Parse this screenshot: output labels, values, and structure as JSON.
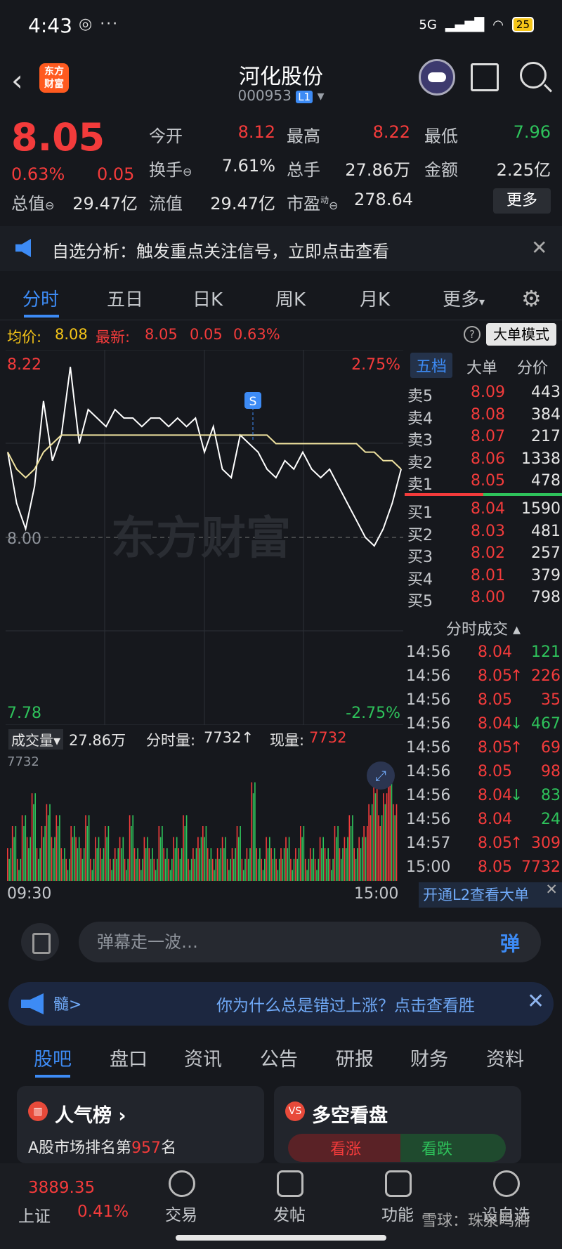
{
  "statusbar": {
    "time": "4:43",
    "network": "5G",
    "battery": "25"
  },
  "header": {
    "title": "河化股份",
    "code": "000953",
    "level": "L1",
    "logo_text": "东方财富"
  },
  "quote": {
    "price": "8.05",
    "change_pct": "0.63%",
    "change_abs": "0.05",
    "open_label": "今开",
    "open": "8.12",
    "high_label": "最高",
    "high": "8.22",
    "low_label": "最低",
    "low": "7.96",
    "turnover_label": "换手",
    "turnover": "7.61%",
    "volume_label": "总手",
    "volume": "27.86万",
    "amount_label": "金额",
    "amount": "2.25亿",
    "mktcap_label": "总值",
    "mktcap": "29.47亿",
    "float_label": "流值",
    "float": "29.47亿",
    "pe_label": "市盈",
    "pe_sup": "动",
    "pe": "278.64",
    "more_label": "更多"
  },
  "notice": {
    "text": "自选分析：触发重点关注信号，立即点击查看"
  },
  "tabs": [
    "分时",
    "五日",
    "日K",
    "周K",
    "月K",
    "更多"
  ],
  "avgbar": {
    "avg_label": "均价:",
    "avg": "8.08",
    "last_label": "最新:",
    "last": "8.05",
    "chg": "0.05",
    "pct": "0.63%",
    "mode_button": "大单模式"
  },
  "chart_data": {
    "type": "line",
    "series": [
      {
        "values": [
          8.1,
          8.04,
          8.01,
          8.06,
          8.16,
          8.09,
          8.12,
          8.2,
          8.11,
          8.15,
          8.14,
          8.13,
          8.15,
          8.14,
          8.14,
          8.13,
          8.14,
          8.14,
          8.13,
          8.14,
          8.13,
          8.14,
          8.1,
          8.13,
          8.08,
          8.07,
          8.12,
          8.11,
          8.1,
          8.08,
          8.07,
          8.09,
          8.08,
          8.1,
          8.08,
          8.07,
          8.08,
          8.06,
          8.04,
          8.02,
          8.0,
          7.99,
          8.01,
          8.04,
          8.08
        ]
      },
      {
        "values": [
          8.1,
          8.08,
          8.07,
          8.08,
          8.1,
          8.11,
          8.12,
          8.12,
          8.12,
          8.12,
          8.12,
          8.12,
          8.12,
          8.12,
          8.12,
          8.12,
          8.12,
          8.12,
          8.12,
          8.12,
          8.12,
          8.12,
          8.12,
          8.12,
          8.12,
          8.12,
          8.12,
          8.12,
          8.12,
          8.12,
          8.11,
          8.11,
          8.11,
          8.11,
          8.11,
          8.11,
          8.11,
          8.11,
          8.11,
          8.11,
          8.1,
          8.1,
          8.09,
          8.09,
          8.08
        ]
      }
    ],
    "ylim": [
      7.78,
      8.22
    ],
    "y_labels": {
      "top": "8.22",
      "mid": "8.00",
      "bottom": "7.78",
      "top_pct": "2.75%",
      "bottom_pct": "-2.75%"
    },
    "signal_marker": "S",
    "watermark": "东方财富",
    "x_labels": [
      "09:30",
      "15:00"
    ]
  },
  "volume": {
    "label": "成交量",
    "total": "27.86万",
    "tick_label": "分时量:",
    "tick": "7732↑",
    "now_label": "现量:",
    "now": "7732",
    "max": "7732",
    "bars": [
      3,
      5,
      2,
      6,
      4,
      8,
      3,
      5,
      7,
      4,
      6,
      3,
      2,
      5,
      4,
      3,
      6,
      2,
      4,
      3,
      5,
      2,
      3,
      4,
      2,
      6,
      3,
      2,
      4,
      3,
      2,
      5,
      3,
      2,
      4,
      3,
      6,
      2,
      3,
      4,
      5,
      3,
      2,
      3,
      4,
      2,
      3,
      5,
      2,
      3,
      9,
      3,
      2,
      4,
      3,
      2,
      3,
      4,
      2,
      3,
      5,
      2,
      3,
      2,
      4,
      3,
      2,
      5,
      3,
      4,
      6,
      3,
      4,
      5,
      7,
      9,
      6,
      8,
      10,
      7
    ]
  },
  "book": {
    "tabs": [
      "五档",
      "大单",
      "分价"
    ],
    "asks": [
      {
        "label": "卖5",
        "price": "8.09",
        "vol": "443"
      },
      {
        "label": "卖4",
        "price": "8.08",
        "vol": "384"
      },
      {
        "label": "卖3",
        "price": "8.07",
        "vol": "217"
      },
      {
        "label": "卖2",
        "price": "8.06",
        "vol": "1338"
      },
      {
        "label": "卖1",
        "price": "8.05",
        "vol": "478"
      }
    ],
    "bids": [
      {
        "label": "买1",
        "price": "8.04",
        "vol": "1590"
      },
      {
        "label": "买2",
        "price": "8.03",
        "vol": "481"
      },
      {
        "label": "买3",
        "price": "8.02",
        "vol": "257"
      },
      {
        "label": "买4",
        "price": "8.01",
        "vol": "379"
      },
      {
        "label": "买5",
        "price": "8.00",
        "vol": "798"
      }
    ],
    "ticks_title": "分时成交",
    "ticks": [
      {
        "time": "14:56",
        "price": "8.04",
        "arrow": "",
        "vol": "121",
        "color": "green"
      },
      {
        "time": "14:56",
        "price": "8.05",
        "arrow": "↑",
        "vol": "226",
        "color": "red"
      },
      {
        "time": "14:56",
        "price": "8.05",
        "arrow": "",
        "vol": "35",
        "color": "red"
      },
      {
        "time": "14:56",
        "price": "8.04",
        "arrow": "↓",
        "vol": "467",
        "color": "green"
      },
      {
        "time": "14:56",
        "price": "8.05",
        "arrow": "↑",
        "vol": "69",
        "color": "red"
      },
      {
        "time": "14:56",
        "price": "8.05",
        "arrow": "",
        "vol": "98",
        "color": "red"
      },
      {
        "time": "14:56",
        "price": "8.04",
        "arrow": "↓",
        "vol": "83",
        "color": "green"
      },
      {
        "time": "14:56",
        "price": "8.04",
        "arrow": "",
        "vol": "24",
        "color": "green"
      },
      {
        "time": "14:57",
        "price": "8.05",
        "arrow": "↑",
        "vol": "309",
        "color": "red"
      },
      {
        "time": "15:00",
        "price": "8.05",
        "arrow": "",
        "vol": "7732",
        "color": "red"
      }
    ]
  },
  "l2_banner": "开通L2查看大单",
  "comment": {
    "placeholder": "弹幕走一波…",
    "button": "弹"
  },
  "promo": {
    "left": "髓>",
    "text": "你为什么总是错过上涨？点击查看胜"
  },
  "bottabs": [
    "股吧",
    "盘口",
    "资讯",
    "公告",
    "研报",
    "财务",
    "资料"
  ],
  "cards": {
    "popular": {
      "title": "人气榜",
      "rank_prefix": "A股市场排名第",
      "rank": "957",
      "rank_suffix": "名"
    },
    "longshort": {
      "title": "多空看盘",
      "bull": "看涨",
      "bear": "看跌"
    }
  },
  "navbar": {
    "index_value": "3889.35",
    "index_name": "上证",
    "index_pct": "0.41%",
    "items": [
      "交易",
      "发帖",
      "功能",
      "设自选"
    ]
  },
  "watermark": "雪球：珠泉鸣涧"
}
